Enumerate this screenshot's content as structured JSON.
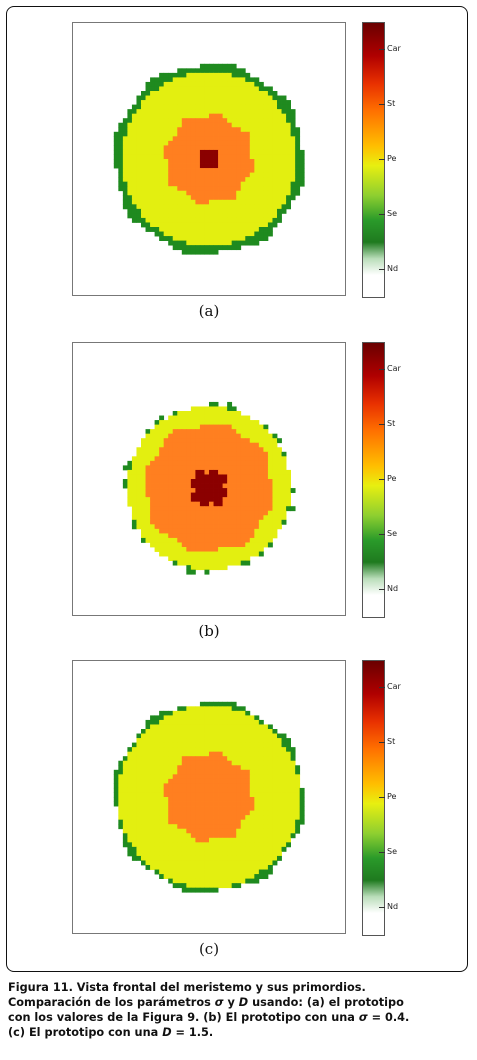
{
  "colors": {
    "Nd": "#ffffff",
    "Se": "#1f8a1f",
    "Pe": "#e3ef10",
    "St": "#ff7f20",
    "Car": "#8b0000"
  },
  "colorbar": {
    "ticks": [
      "Car",
      "St",
      "Pe",
      "Se",
      "Nd"
    ]
  },
  "panels": [
    {
      "label": "(a)",
      "regions": [
        {
          "level": "Se",
          "radius": 0.7,
          "jagged": true
        },
        {
          "level": "Pe",
          "radius": 0.64,
          "jagged": false
        },
        {
          "level": "St",
          "radius": 0.32,
          "jagged": true
        },
        {
          "level": "Car",
          "radius": 0.08,
          "jagged": false
        }
      ]
    },
    {
      "label": "(b)",
      "regions": [
        {
          "level": "Se",
          "radius": 0.62,
          "jagged": true
        },
        {
          "level": "Pe",
          "radius": 0.6,
          "jagged": false
        },
        {
          "level": "St",
          "radius": 0.47,
          "jagged": true
        },
        {
          "level": "Car",
          "radius": 0.13,
          "jagged": true
        }
      ]
    },
    {
      "label": "(c)",
      "regions": [
        {
          "level": "Se",
          "radius": 0.7,
          "jagged": true
        },
        {
          "level": "Pe",
          "radius": 0.67,
          "jagged": false
        },
        {
          "level": "St",
          "radius": 0.32,
          "jagged": true
        }
      ]
    }
  ],
  "caption": {
    "line1": "Figura 11. Vista frontal del meristemo y sus primordios.",
    "line2_a": "Comparación de los parámetros ",
    "sigma": "σ",
    "line2_b": " y ",
    "D": "D",
    "line2_c": " usando: (a) el prototipo",
    "line3_a": "con los valores de la Figura 9. (b) El prototipo con una ",
    "line3_b": " = 0.4.",
    "line4_a": "(c) El prototipo con una ",
    "line4_b": " = 1.5."
  }
}
